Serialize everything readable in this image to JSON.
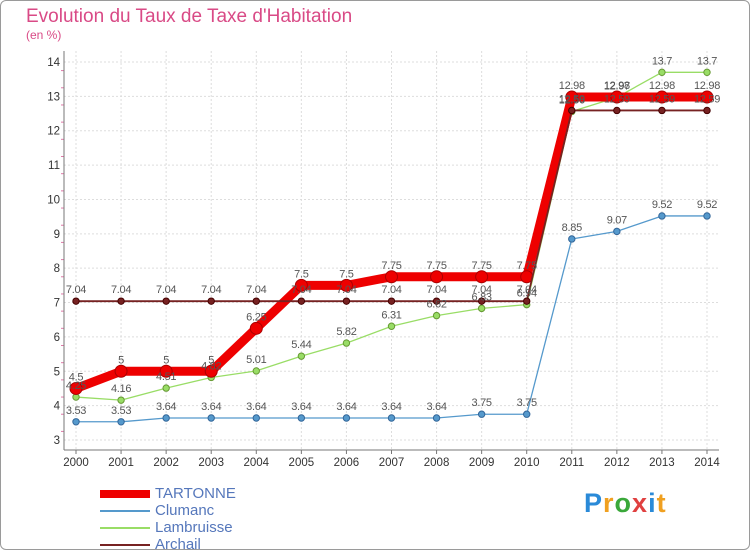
{
  "chart_data": {
    "type": "line",
    "title": "Evolution du Taux de Taxe d'Habitation",
    "subtitle": "(en %)",
    "x": [
      "2000",
      "2001",
      "2002",
      "2003",
      "2004",
      "2005",
      "2006",
      "2007",
      "2008",
      "2009",
      "2010",
      "2011",
      "2012",
      "2013",
      "2014"
    ],
    "ylim": [
      3,
      14
    ],
    "yticks": [
      "3",
      "4",
      "5",
      "6",
      "7",
      "8",
      "9",
      "10",
      "11",
      "12",
      "13",
      "14"
    ],
    "grid": true,
    "legend_position": "bottom-left",
    "series": [
      {
        "name": "TARTONNE",
        "color": "#ee0000",
        "values": [
          4.5,
          5,
          5,
          5,
          6.25,
          7.5,
          7.5,
          7.75,
          7.75,
          7.75,
          7.75,
          12.98,
          12.98,
          12.98,
          12.98
        ],
        "labels": [
          "4.5",
          "5",
          "5",
          "5",
          "6.25",
          "7.5",
          "7.5",
          "7.75",
          "7.75",
          "7.75",
          "7.75",
          "12.98",
          "12.98",
          "12.98",
          "12.98"
        ]
      },
      {
        "name": "Clumanc",
        "color": "#5599cc",
        "values": [
          3.53,
          3.53,
          3.64,
          3.64,
          3.64,
          3.64,
          3.64,
          3.64,
          3.64,
          3.75,
          3.75,
          8.85,
          9.07,
          9.52,
          9.52
        ],
        "labels": [
          "3.53",
          "3.53",
          "3.64",
          "3.64",
          "3.64",
          "3.64",
          "3.64",
          "3.64",
          "3.64",
          "3.75",
          "3.75",
          "8.85",
          "9.07",
          "9.52",
          "9.52"
        ]
      },
      {
        "name": "Lambruisse",
        "color": "#99dd66",
        "values": [
          4.25,
          4.16,
          4.51,
          4.82,
          5.01,
          5.44,
          5.82,
          6.31,
          6.62,
          6.83,
          6.94,
          12.56,
          12.97,
          13.7,
          13.7
        ],
        "labels": [
          "4.25",
          "4.16",
          "4.51",
          "4.82",
          "5.01",
          "5.44",
          "5.82",
          "6.31",
          "6.62",
          "6.83",
          "6.94",
          "12.56",
          "12.97",
          "13.7",
          "13.7"
        ]
      },
      {
        "name": "Archail",
        "color": "#772222",
        "values": [
          7.04,
          7.04,
          7.04,
          7.04,
          7.04,
          7.04,
          7.04,
          7.04,
          7.04,
          7.04,
          7.04,
          12.59,
          12.59,
          12.59,
          12.59
        ],
        "labels": [
          "7.04",
          "7.04",
          "7.04",
          "7.04",
          "7.04",
          "7.04",
          "7.04",
          "7.04",
          "7.04",
          "7.04",
          "7.04",
          "12.59",
          "12.59",
          "12.59",
          "12.59"
        ]
      }
    ]
  },
  "brand": [
    "P",
    "r",
    "o",
    "x",
    "i",
    "t"
  ]
}
